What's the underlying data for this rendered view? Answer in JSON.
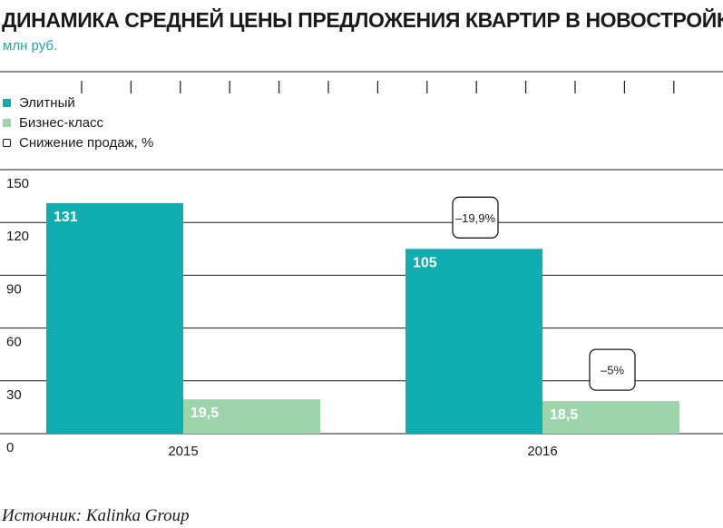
{
  "title": "ДИНАМИКА СРЕДНЕЙ ЦЕНЫ ПРЕДЛОЖЕНИЯ КВАРТИР В НОВОСТРОЙКАХ",
  "subtitle": "млн руб.",
  "legend": [
    {
      "label": "Элитный",
      "color": "#10adb0",
      "style": "filled"
    },
    {
      "label": "Бизнес-класс",
      "color": "#9ed4ac",
      "style": "filled"
    },
    {
      "label": "Снижение продаж, %",
      "color": "#1a1a1a",
      "style": "outline"
    }
  ],
  "source": "Источник: Kalinka Group",
  "chart_data": {
    "type": "bar",
    "categories": [
      "2015",
      "2016"
    ],
    "series": [
      {
        "name": "Элитный",
        "color": "#10adb0",
        "values": [
          131,
          105
        ],
        "value_labels": [
          "131",
          "105"
        ]
      },
      {
        "name": "Бизнес-класс",
        "color": "#9ed4ac",
        "values": [
          19.5,
          18.5
        ],
        "value_labels": [
          "19,5",
          "18,5"
        ]
      }
    ],
    "annotations": [
      {
        "category": "2016",
        "series": "Элитный",
        "text": "–19,9%"
      },
      {
        "category": "2016",
        "series": "Бизнес-класс",
        "text": "–5%"
      }
    ],
    "ylim": [
      0,
      150
    ],
    "yticks": [
      0,
      30,
      60,
      90,
      120,
      150
    ],
    "ytick_labels": [
      "0",
      "30",
      "60",
      "90",
      "120",
      "150"
    ],
    "grid": true
  }
}
